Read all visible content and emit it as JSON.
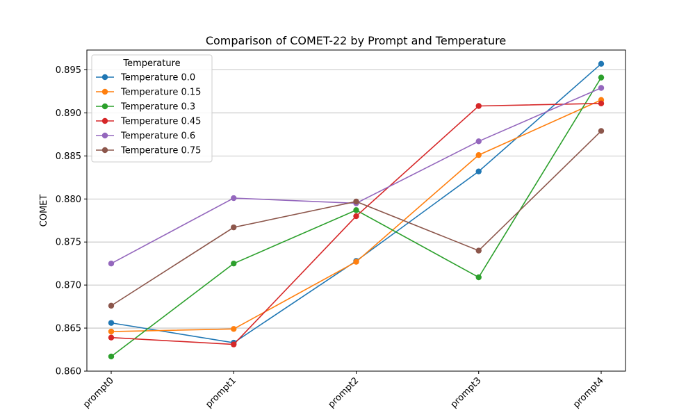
{
  "chart_data": {
    "type": "line",
    "title": "Comparison of COMET-22 by Prompt and Temperature",
    "xlabel": "",
    "ylabel": "COMET",
    "categories": [
      "prompt0",
      "prompt1",
      "prompt2",
      "prompt3",
      "prompt4"
    ],
    "ylim": [
      0.86,
      0.8973
    ],
    "yticks": [
      0.86,
      0.865,
      0.87,
      0.875,
      0.88,
      0.885,
      0.89,
      0.895
    ],
    "ytick_labels": [
      "0.860",
      "0.865",
      "0.870",
      "0.875",
      "0.880",
      "0.885",
      "0.890",
      "0.895"
    ],
    "grid": "y",
    "legend_title": "Temperature",
    "legend_position": "top-left",
    "series": [
      {
        "name": "Temperature 0.0",
        "color": "#1f77b4",
        "values": [
          0.8656,
          0.8633,
          0.8728,
          0.8832,
          0.8957
        ]
      },
      {
        "name": "Temperature 0.15",
        "color": "#ff7f0e",
        "values": [
          0.8646,
          0.8649,
          0.8727,
          0.8851,
          0.8915
        ]
      },
      {
        "name": "Temperature 0.3",
        "color": "#2ca02c",
        "values": [
          0.8617,
          0.8725,
          0.8787,
          0.8709,
          0.8941
        ]
      },
      {
        "name": "Temperature 0.45",
        "color": "#d62728",
        "values": [
          0.8639,
          0.8631,
          0.878,
          0.8908,
          0.8911
        ]
      },
      {
        "name": "Temperature 0.6",
        "color": "#9467bd",
        "values": [
          0.8725,
          0.8801,
          0.8795,
          0.8867,
          0.8929
        ]
      },
      {
        "name": "Temperature 0.75",
        "color": "#8c564b",
        "values": [
          0.8676,
          0.8767,
          0.8797,
          0.874,
          0.8879
        ]
      }
    ]
  }
}
